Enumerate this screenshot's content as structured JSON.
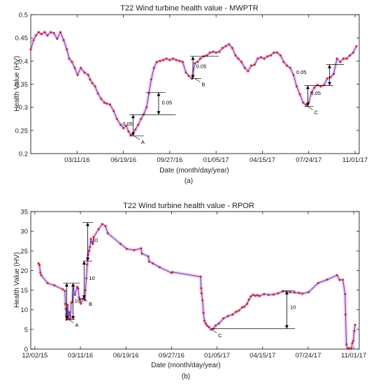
{
  "chart_data": [
    {
      "type": "line",
      "title": "T22 Wind turbine health value - MWPTR",
      "xlabel": "Date (month/day/year)",
      "ylabel": "Health Value (HV)",
      "caption": "(a)",
      "x_type": "date",
      "xlim": [
        "2015-12-02",
        "2017-11-10"
      ],
      "ylim": [
        0.2,
        0.5
      ],
      "xticks": [
        "2016-03-11",
        "2016-06-19",
        "2016-09-27",
        "2017-01-05",
        "2017-04-15",
        "2017-07-24",
        "2017-11-01"
      ],
      "xtick_labels": [
        "03/11/16",
        "06/19/16",
        "09/27/16",
        "01/05/17",
        "04/15/17",
        "07/24/17",
        "11/01/17"
      ],
      "yticks": [
        0.2,
        0.25,
        0.3,
        0.35,
        0.4,
        0.45,
        0.5
      ],
      "ytick_labels": [
        "0.2",
        "0.25",
        "0.3",
        "0.35",
        "0.4",
        "0.45",
        "0.5"
      ],
      "grid": false,
      "series": [
        {
          "x": [
            "2015-12-02",
            "2015-12-08",
            "2015-12-13",
            "2015-12-19",
            "2015-12-25",
            "2016-01-01",
            "2016-01-07",
            "2016-01-14",
            "2016-01-21",
            "2016-01-28",
            "2016-02-04",
            "2016-02-11",
            "2016-02-18",
            "2016-02-23",
            "2016-02-29",
            "2016-03-06",
            "2016-03-12",
            "2016-03-19",
            "2016-03-27",
            "2016-04-04",
            "2016-04-08",
            "2016-04-13",
            "2016-04-19",
            "2016-04-25",
            "2016-05-02",
            "2016-05-09",
            "2016-05-14",
            "2016-05-21",
            "2016-05-29",
            "2016-06-05",
            "2016-06-13",
            "2016-06-19",
            "2016-06-25",
            "2016-06-30",
            "2016-07-05",
            "2016-07-10",
            "2016-07-15",
            "2016-07-21",
            "2016-07-27",
            "2016-08-02",
            "2016-08-08",
            "2016-08-13",
            "2016-08-18",
            "2016-08-24",
            "2016-08-30",
            "2016-09-06",
            "2016-09-13",
            "2016-09-20",
            "2016-09-27",
            "2016-10-04",
            "2016-10-11",
            "2016-10-18",
            "2016-10-25",
            "2016-11-01",
            "2016-11-07",
            "2016-11-14",
            "2016-11-20",
            "2016-11-26",
            "2016-12-02",
            "2016-12-09",
            "2016-12-16",
            "2016-12-23",
            "2016-12-30",
            "2017-01-05",
            "2017-01-12",
            "2017-01-19",
            "2017-01-26",
            "2017-02-02",
            "2017-02-09",
            "2017-02-16",
            "2017-02-22",
            "2017-03-01",
            "2017-03-08",
            "2017-03-15",
            "2017-03-22",
            "2017-03-29",
            "2017-04-05",
            "2017-04-12",
            "2017-04-19",
            "2017-04-26",
            "2017-05-03",
            "2017-05-10",
            "2017-05-17",
            "2017-05-24",
            "2017-05-31",
            "2017-06-07",
            "2017-06-14",
            "2017-06-21",
            "2017-06-28",
            "2017-07-05",
            "2017-07-12",
            "2017-07-18",
            "2017-07-24",
            "2017-07-30",
            "2017-08-05",
            "2017-08-12",
            "2017-08-19",
            "2017-08-26",
            "2017-09-02",
            "2017-09-09",
            "2017-09-16",
            "2017-09-23",
            "2017-09-30",
            "2017-10-07",
            "2017-10-14",
            "2017-10-21",
            "2017-10-28",
            "2017-11-04"
          ],
          "y": [
            0.425,
            0.445,
            0.455,
            0.462,
            0.458,
            0.462,
            0.455,
            0.462,
            0.46,
            0.448,
            0.462,
            0.445,
            0.425,
            0.405,
            0.398,
            0.385,
            0.37,
            0.385,
            0.375,
            0.37,
            0.36,
            0.352,
            0.345,
            0.33,
            0.318,
            0.31,
            0.308,
            0.306,
            0.292,
            0.275,
            0.262,
            0.255,
            0.26,
            0.248,
            0.24,
            0.243,
            0.252,
            0.262,
            0.275,
            0.285,
            0.3,
            0.33,
            0.36,
            0.385,
            0.398,
            0.4,
            0.402,
            0.405,
            0.402,
            0.405,
            0.402,
            0.4,
            0.398,
            0.375,
            0.368,
            0.362,
            0.395,
            0.398,
            0.405,
            0.41,
            0.412,
            0.418,
            0.42,
            0.418,
            0.42,
            0.428,
            0.432,
            0.436,
            0.428,
            0.412,
            0.405,
            0.398,
            0.385,
            0.378,
            0.39,
            0.392,
            0.405,
            0.408,
            0.405,
            0.41,
            0.412,
            0.418,
            0.418,
            0.412,
            0.398,
            0.39,
            0.385,
            0.37,
            0.345,
            0.328,
            0.31,
            0.305,
            0.31,
            0.332,
            0.342,
            0.348,
            0.345,
            0.348,
            0.362,
            0.365,
            0.372,
            0.405,
            0.398,
            0.405,
            0.405,
            0.412,
            0.418,
            0.432
          ]
        }
      ],
      "annotations": [
        {
          "label": "A",
          "x": "2016-07-12",
          "y": 0.238
        },
        {
          "label": "B",
          "x": "2016-11-20",
          "y": 0.362
        },
        {
          "label": "C",
          "x": "2017-07-21",
          "y": 0.302
        }
      ],
      "span_labels": [
        "0.05",
        "0.05",
        "0.05",
        "0.05",
        "0.05"
      ]
    },
    {
      "type": "line",
      "title": "T22 Wind turbine health value - RPOR",
      "xlabel": "Date (month/day/year)",
      "ylabel": "Health Value  (HV)",
      "caption": "(b)",
      "x_type": "date",
      "xlim": [
        "2015-11-23",
        "2017-11-13"
      ],
      "ylim": [
        0,
        35
      ],
      "xticks": [
        "2015-12-02",
        "2016-03-11",
        "2016-06-19",
        "2016-09-27",
        "2017-01-05",
        "2017-04-15",
        "2017-07-24",
        "2017-11-01"
      ],
      "xtick_labels": [
        "12/02/15",
        "03/11/16",
        "06/19/16",
        "09/27/16",
        "01/05/17",
        "04/15/17",
        "07/24/17",
        "11/01/17"
      ],
      "yticks": [
        0,
        5,
        10,
        15,
        20,
        25,
        30,
        35
      ],
      "ytick_labels": [
        "0",
        "5",
        "10",
        "15",
        "20",
        "25",
        "30",
        "35"
      ],
      "grid": false,
      "series": [
        {
          "x": [
            "2015-12-10",
            "2015-12-12",
            "2015-12-14",
            "2015-12-16",
            "2015-12-30",
            "2016-01-14",
            "2016-02-01",
            "2016-02-06",
            "2016-02-07",
            "2016-02-08",
            "2016-02-09",
            "2016-02-10",
            "2016-02-11",
            "2016-02-12",
            "2016-02-14",
            "2016-02-16",
            "2016-02-18",
            "2016-02-20",
            "2016-02-22",
            "2016-02-24",
            "2016-02-28",
            "2016-03-04",
            "2016-03-06",
            "2016-03-08",
            "2016-03-10",
            "2016-03-12",
            "2016-03-17",
            "2016-03-21",
            "2016-03-22",
            "2016-03-24",
            "2016-03-26",
            "2016-03-28",
            "2016-03-30",
            "2016-04-01",
            "2016-04-03",
            "2016-04-05",
            "2016-04-07",
            "2016-04-09",
            "2016-04-20",
            "2016-04-28",
            "2016-05-05",
            "2016-05-10",
            "2016-06-07",
            "2016-06-21",
            "2016-07-07",
            "2016-07-22",
            "2016-07-24",
            "2016-08-07",
            "2016-08-09",
            "2016-08-17",
            "2016-09-01",
            "2016-09-27",
            "2016-09-29",
            "2016-11-30",
            "2016-12-01",
            "2016-12-02",
            "2016-12-04",
            "2016-12-06",
            "2016-12-08",
            "2016-12-11",
            "2016-12-14",
            "2016-12-18",
            "2016-12-23",
            "2016-12-28",
            "2017-01-02",
            "2017-01-09",
            "2017-01-19",
            "2017-01-29",
            "2017-02-08",
            "2017-02-16",
            "2017-02-22",
            "2017-03-01",
            "2017-03-06",
            "2017-03-12",
            "2017-03-16",
            "2017-03-20",
            "2017-03-25",
            "2017-03-30",
            "2017-04-04",
            "2017-04-08",
            "2017-04-18",
            "2017-04-28",
            "2017-05-09",
            "2017-05-19",
            "2017-05-29",
            "2017-06-14",
            "2017-06-24",
            "2017-07-04",
            "2017-07-11",
            "2017-07-25",
            "2017-08-15",
            "2017-09-04",
            "2017-09-25",
            "2017-10-01",
            "2017-10-08",
            "2017-10-13",
            "2017-10-14",
            "2017-10-16",
            "2017-10-18",
            "2017-10-20",
            "2017-10-22",
            "2017-10-24",
            "2017-10-27",
            "2017-10-29",
            "2017-10-31",
            "2017-11-02",
            "2017-11-04"
          ],
          "y": [
            21.8,
            21.4,
            19.5,
            18.8,
            16.8,
            16.2,
            15.2,
            14.8,
            11.5,
            10.2,
            8.8,
            7.5,
            8.5,
            11.2,
            7.8,
            9.4,
            7.8,
            11.8,
            12.0,
            16.2,
            13.8,
            15.8,
            15.4,
            13.2,
            12.6,
            11.6,
            12.8,
            12.5,
            15.0,
            18.0,
            21.5,
            24.0,
            25.0,
            26.0,
            28.0,
            27.2,
            26.8,
            28.5,
            30.5,
            31.8,
            31.3,
            29.5,
            26.8,
            25.5,
            25.2,
            25.6,
            24.3,
            23.6,
            22.3,
            21.8,
            20.8,
            19.4,
            19.6,
            18.4,
            15.5,
            14.2,
            12.4,
            9.2,
            7.2,
            6.5,
            6.0,
            5.6,
            5.0,
            5.2,
            6.0,
            6.5,
            7.8,
            8.4,
            8.8,
            9.5,
            9.8,
            10.6,
            10.8,
            11.5,
            12.6,
            13.4,
            13.8,
            13.6,
            13.7,
            13.5,
            14.0,
            13.8,
            13.9,
            14.2,
            14.7,
            14.5,
            14.4,
            14.3,
            14.1,
            14.5,
            16.8,
            17.7,
            18.8,
            17.6,
            17.6,
            14.0,
            8.8,
            1.2,
            0.1,
            0.2,
            0.1,
            0.2,
            0.1,
            1.5,
            2.1,
            4.6,
            6.2
          ]
        }
      ],
      "annotations": [
        {
          "label": "A",
          "x": "2016-02-13",
          "y": 7.6
        },
        {
          "label": "B",
          "x": "2016-03-14",
          "y": 13.0
        },
        {
          "label": "C",
          "x": "2016-12-23",
          "y": 5.0
        }
      ],
      "span_labels": [
        "10",
        "10",
        "10",
        "10"
      ]
    }
  ],
  "colors": {
    "line": "#3f3fd6",
    "marker": "#c62828",
    "halo": "#f0a8d8"
  }
}
